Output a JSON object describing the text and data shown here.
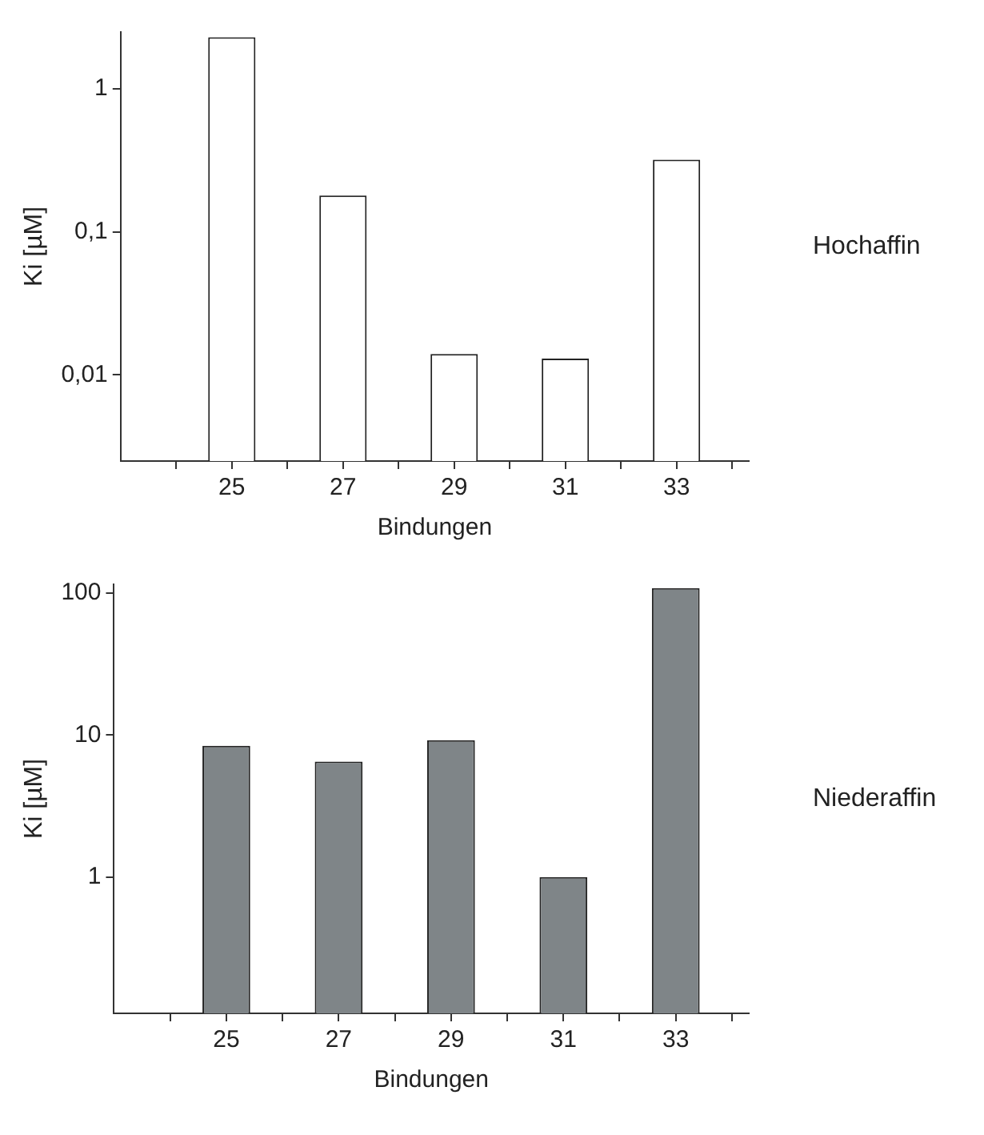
{
  "chart_data": [
    {
      "type": "bar",
      "annotations": [
        "Hochaffin"
      ],
      "xlabel": "Bindungen",
      "ylabel": "Ki [µM]",
      "x": [
        25,
        27,
        29,
        31,
        33
      ],
      "values": [
        2.3,
        0.18,
        0.014,
        0.013,
        0.32
      ],
      "color": "#ffffff",
      "log": "y",
      "xlim": [
        23,
        34.3
      ],
      "xticks": [
        {
          "value": 24,
          "label": null
        },
        25,
        {
          "value": 26,
          "label": null
        },
        27,
        {
          "value": 28,
          "label": null
        },
        29,
        {
          "value": 30,
          "label": null
        },
        31,
        {
          "value": 32,
          "label": null
        },
        33,
        {
          "value": 34,
          "label": null
        }
      ],
      "ylim": [
        0.0025,
        2.5
      ],
      "yticks": [
        {
          "value": 0.01,
          "label": "0,01"
        },
        {
          "value": 0.1,
          "label": "0,1"
        },
        1
      ],
      "grid": false,
      "legend": false
    },
    {
      "type": "bar",
      "annotations": [
        "Niederaffin"
      ],
      "xlabel": "Bindungen",
      "ylabel": "Ki [µM]",
      "x": [
        25,
        27,
        29,
        31,
        33
      ],
      "values": [
        8.4,
        6.5,
        9.2,
        1.0,
        108
      ],
      "color": "#7f8588",
      "log": "y",
      "xlim": [
        23,
        34.3
      ],
      "xticks": [
        {
          "value": 24,
          "label": null
        },
        25,
        {
          "value": 26,
          "label": null
        },
        27,
        {
          "value": 28,
          "label": null
        },
        29,
        {
          "value": 30,
          "label": null
        },
        31,
        {
          "value": 32,
          "label": null
        },
        33,
        {
          "value": 34,
          "label": null
        }
      ],
      "ylim": [
        0.11,
        115
      ],
      "yticks": [
        1,
        10,
        100
      ],
      "grid": false,
      "legend": false
    }
  ]
}
